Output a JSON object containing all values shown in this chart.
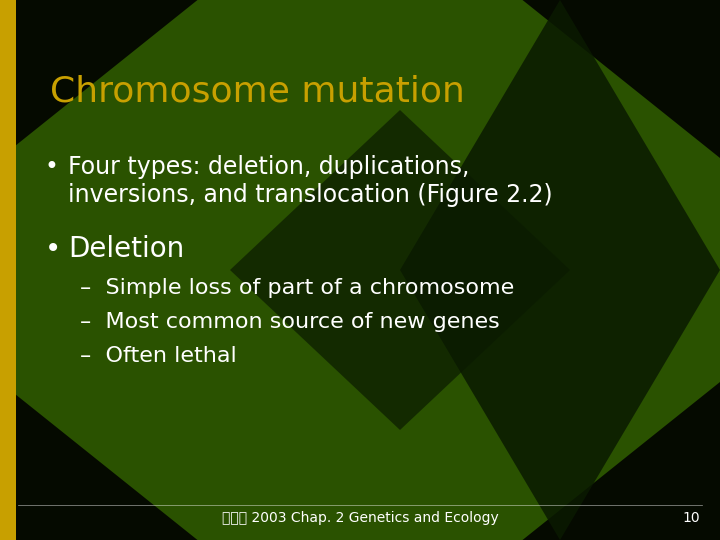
{
  "title": "Chromosome mutation",
  "title_color": "#C8A000",
  "bg_color_outer": "#050A00",
  "bg_color_diamond": "#2A5200",
  "bg_color_inner_diamond": "#0A1A00",
  "text_color": "#FFFFFF",
  "left_bar_color": "#C8A000",
  "bullet1_text_line1": "Four types: deletion, duplications,",
  "bullet1_text_line2": "inversions, and translocation (Figure 2.2)",
  "bullet2_text": "Deletion",
  "sub1": "–  Simple loss of part of a chromosome",
  "sub2": "–  Most common source of new genes",
  "sub3": "–  Often lethal",
  "footer": "生態學 2003 Chap. 2 Genetics and Ecology",
  "page_num": "10",
  "title_fontsize": 26,
  "bullet_fontsize": 17,
  "bullet2_fontsize": 20,
  "sub_fontsize": 16,
  "footer_fontsize": 10
}
